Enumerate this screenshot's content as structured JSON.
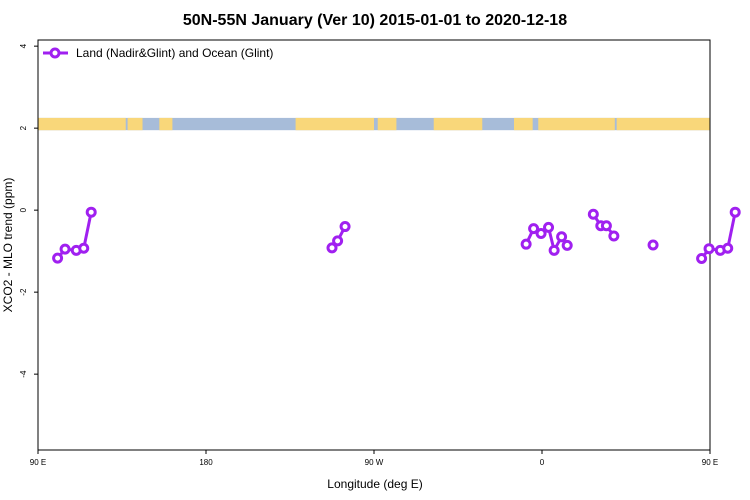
{
  "chart_data": {
    "type": "line",
    "title": "50N-55N January (Ver 10)   2015-01-01 to 2020-12-18",
    "xlabel": "Longitude (deg E)",
    "ylabel": "XCO2 - MLO trend (ppm)",
    "xlim": [
      90,
      450
    ],
    "ylim": [
      -5.85,
      4.15
    ],
    "xticks": [
      {
        "value": 90,
        "label": "90 E"
      },
      {
        "value": 180,
        "label": "180"
      },
      {
        "value": 270,
        "label": "90 W"
      },
      {
        "value": 360,
        "label": "0"
      },
      {
        "value": 450,
        "label": "90 E"
      },
      {
        "value": 540,
        "label": "180"
      }
    ],
    "yticks": [
      {
        "value": 4,
        "label": "4"
      },
      {
        "value": 2,
        "label": "2"
      },
      {
        "value": 0,
        "label": "0"
      },
      {
        "value": -2,
        "label": "-2"
      },
      {
        "value": -4,
        "label": "-4"
      }
    ],
    "legend": {
      "position": "top-left"
    },
    "series": [
      {
        "name": "Land (Nadir&Glint) and Ocean (Glint)",
        "color": "#a020f0",
        "segments": [
          [
            [
              100.5,
              -1.17
            ],
            [
              104.5,
              -0.95
            ],
            [
              110.5,
              -0.98
            ],
            [
              114.5,
              -0.93
            ],
            [
              118.5,
              -0.05
            ]
          ],
          [
            [
              247.5,
              -0.92
            ],
            [
              250.5,
              -0.75
            ],
            [
              254.5,
              -0.4
            ]
          ],
          [
            [
              351.5,
              -0.83
            ],
            [
              355.5,
              -0.45
            ],
            [
              359.5,
              -0.57
            ],
            [
              363.5,
              -0.42
            ],
            [
              366.5,
              -0.98
            ],
            [
              370.5,
              -0.65
            ],
            [
              373.5,
              -0.86
            ]
          ],
          [
            [
              387.5,
              -0.1
            ],
            [
              391.5,
              -0.38
            ],
            [
              394.5,
              -0.38
            ],
            [
              398.5,
              -0.63
            ]
          ],
          [
            [
              419.5,
              -0.85
            ]
          ],
          [
            [
              445.5,
              -1.18
            ],
            [
              449.5,
              -0.94
            ],
            [
              455.5,
              -0.98
            ],
            [
              459.5,
              -0.93
            ],
            [
              463.5,
              -0.05
            ]
          ]
        ]
      }
    ],
    "map_band": {
      "y_range": [
        1.95,
        2.25
      ],
      "land_color": "#f9d77a",
      "ocean_color": "#a7bcd9",
      "land_x_ranges": [
        [
          90,
          137
        ],
        [
          138,
          146
        ],
        [
          155,
          162
        ],
        [
          228,
          270
        ],
        [
          272,
          282
        ],
        [
          302,
          328
        ],
        [
          345,
          355
        ],
        [
          358,
          399
        ],
        [
          400,
          453
        ],
        [
          470,
          477
        ]
      ]
    }
  }
}
